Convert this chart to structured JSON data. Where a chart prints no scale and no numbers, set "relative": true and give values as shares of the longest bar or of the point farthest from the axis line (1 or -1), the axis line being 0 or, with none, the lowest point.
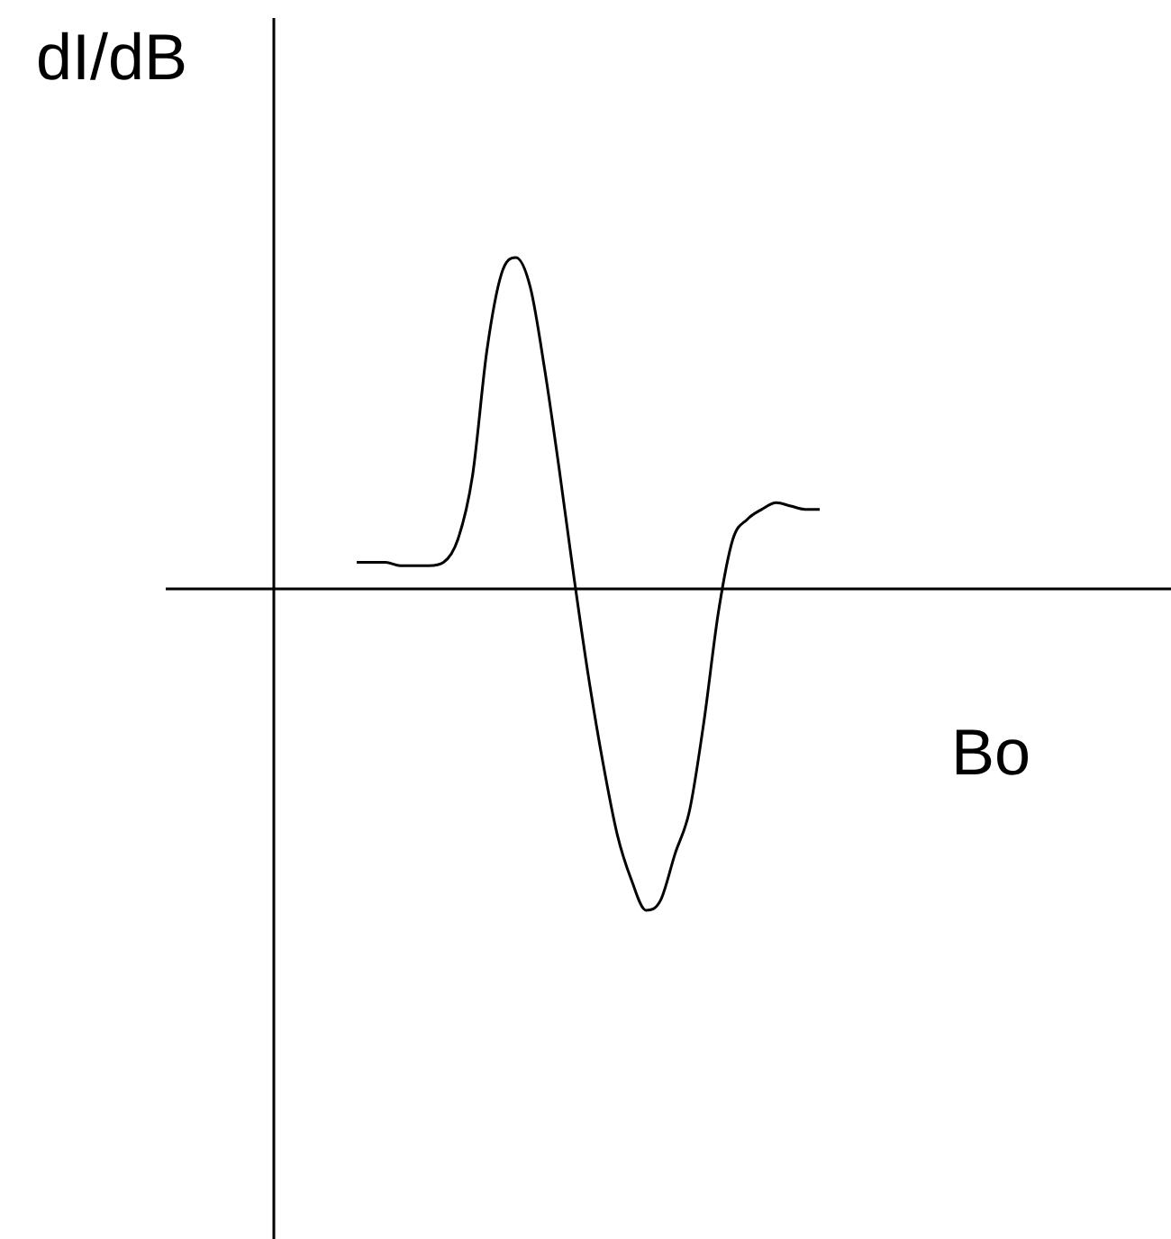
{
  "chart_data": {
    "type": "line",
    "relative": true,
    "xlabel": "Bo",
    "ylabel": "dI/dB",
    "color": "#000000",
    "categories": [
      null,
      null,
      null,
      null,
      null,
      null,
      null,
      null,
      null,
      null,
      null,
      null,
      null,
      null,
      null,
      null,
      null,
      null,
      null,
      null,
      null,
      null,
      null,
      null,
      null,
      null,
      null,
      null,
      null,
      null,
      null,
      null,
      null
    ],
    "values": [
      0.08,
      0.08,
      0.08,
      0.07,
      0.07,
      0.07,
      0.08,
      0.15,
      0.34,
      0.72,
      0.95,
      1,
      0.91,
      0.66,
      0.36,
      0.04,
      -0.26,
      -0.52,
      -0.74,
      -0.88,
      -0.97,
      -0.94,
      -0.8,
      -0.67,
      -0.4,
      -0.07,
      0.15,
      0.21,
      0.24,
      0.26,
      0.25,
      0.24,
      0.24
    ]
  }
}
